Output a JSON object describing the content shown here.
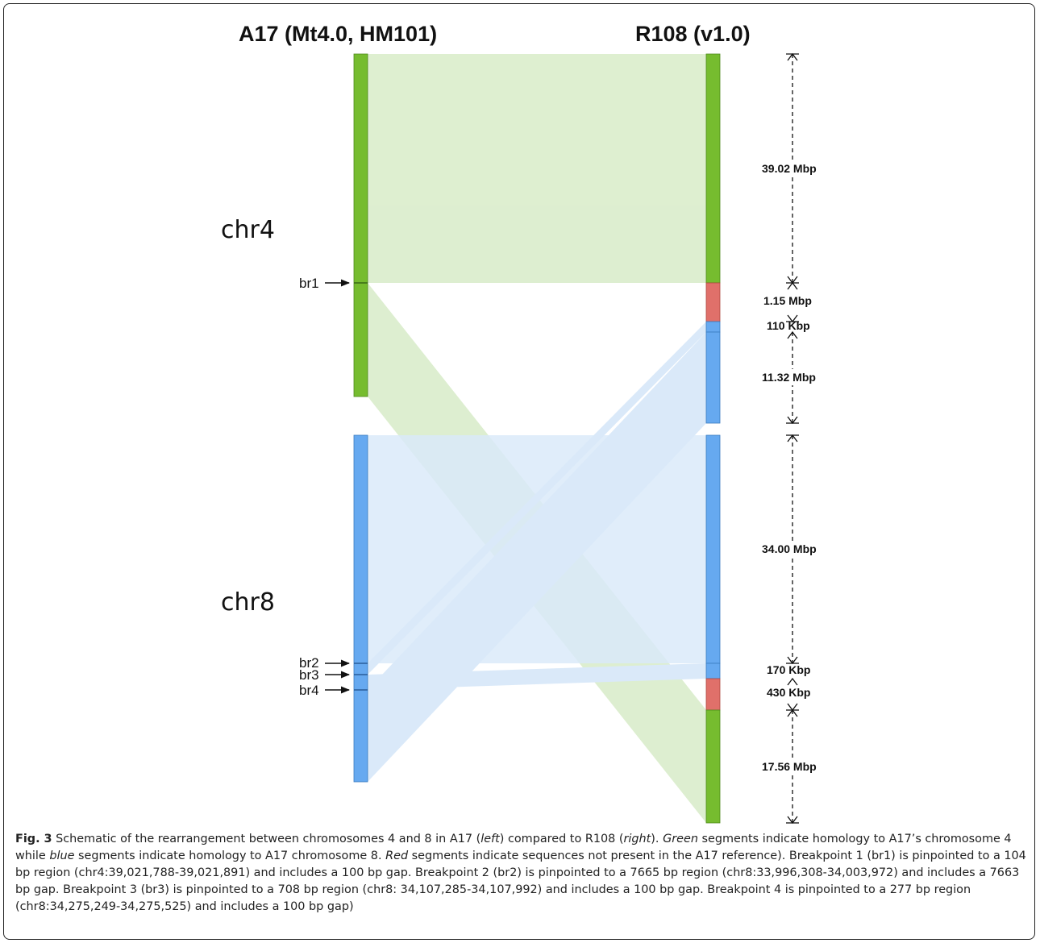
{
  "figure": {
    "left_title": "A17 (Mt4.0, HM101)",
    "right_title": "R108 (v1.0)",
    "chromosomes": [
      {
        "id": "chr4",
        "label": "chr4",
        "color": "#76bc2f"
      },
      {
        "id": "chr8",
        "label": "chr8",
        "color": "#66a9f0"
      }
    ],
    "breakpoints": [
      {
        "id": "br1",
        "label": "br1"
      },
      {
        "id": "br2",
        "label": "br2"
      },
      {
        "id": "br3",
        "label": "br3"
      },
      {
        "id": "br4",
        "label": "br4"
      }
    ],
    "right_segments": [
      {
        "homology": "chr4",
        "size": "39.02 Mbp",
        "color": "#76bc2f"
      },
      {
        "homology": "novel",
        "size": "1.15 Mbp",
        "color": "#e0706a"
      },
      {
        "homology": "chr8",
        "size": "110 Kbp",
        "color": "#66a9f0"
      },
      {
        "homology": "chr8",
        "size": "11.32 Mbp",
        "color": "#66a9f0"
      },
      {
        "homology": "chr8",
        "size": "34.00 Mbp",
        "color": "#66a9f0"
      },
      {
        "homology": "chr8",
        "size": "170 Kbp",
        "color": "#66a9f0"
      },
      {
        "homology": "novel",
        "size": "430 Kbp",
        "color": "#e0706a"
      },
      {
        "homology": "chr4",
        "size": "17.56 Mbp",
        "color": "#76bc2f"
      }
    ],
    "ribbon_colors": {
      "chr4": "#d8ecc8",
      "chr8": "#d4e6f8"
    }
  },
  "caption": {
    "label": "Fig. 3",
    "parts": [
      {
        "text": " Schematic of the rearrangement between chromosomes 4 and 8 in A17 (",
        "italic": false
      },
      {
        "text": "left",
        "italic": true
      },
      {
        "text": ") compared to R108 (",
        "italic": false
      },
      {
        "text": "right",
        "italic": true
      },
      {
        "text": "). ",
        "italic": false
      },
      {
        "text": "Green",
        "italic": true
      },
      {
        "text": " segments indicate homology to A17’s chromosome 4 while ",
        "italic": false
      },
      {
        "text": "blue",
        "italic": true
      },
      {
        "text": " segments indicate homology to A17 chromosome 8. ",
        "italic": false
      },
      {
        "text": "Red",
        "italic": true
      },
      {
        "text": " segments indicate sequences not present in the A17 reference). Breakpoint 1 (br1) is pinpointed to a 104 bp region (chr4:39,021,788-39,021,891) and includes a 100 bp gap. Breakpoint 2 (br2) is pinpointed to a 7665 bp region (chr8:33,996,308-34,003,972) and includes a 7663 bp gap. Breakpoint 3 (br3) is pinpointed to a 708 bp region (chr8: 34,107,285-34,107,992) and includes a 100 bp gap. Breakpoint 4 is pinpointed to a 277 bp region (chr8:34,275,249-34,275,525) and includes a 100 bp gap)",
        "italic": false
      }
    ]
  }
}
